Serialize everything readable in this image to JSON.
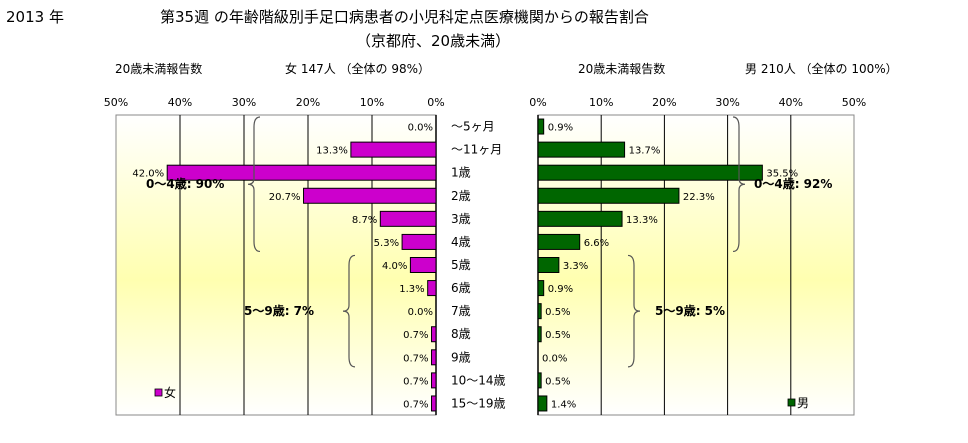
{
  "header": {
    "year": "2013 年",
    "title": "第35週 の年齢階級別手足口病患者の小児科定点医療機関からの報告割合",
    "subtitle": "（京都府、20歳未満）"
  },
  "left": {
    "caption": "20歳未満報告数",
    "total": "女  147人 （全体の  98%）",
    "legend": "女",
    "group_a": "0～4歳: 90%",
    "group_b": "5～9歳:  7%"
  },
  "right": {
    "caption": "20歳未満報告数",
    "total": "男  210人 （全体の  100%）",
    "legend": "男",
    "group_a": "0～4歳: 92%",
    "group_b": "5～9歳:  5%"
  },
  "chart_data": {
    "type": "bar",
    "orientation": "horizontal-butterfly",
    "categories": [
      "～5ヶ月",
      "～11ヶ月",
      "1歳",
      "2歳",
      "3歳",
      "4歳",
      "5歳",
      "6歳",
      "7歳",
      "8歳",
      "9歳",
      "10～14歳",
      "15～19歳"
    ],
    "series": [
      {
        "name": "女",
        "values": [
          0.0,
          13.3,
          42.0,
          20.7,
          8.7,
          5.3,
          4.0,
          1.3,
          0.0,
          0.7,
          0.7,
          0.7,
          0.7
        ],
        "color": "#cc00cc"
      },
      {
        "name": "男",
        "values": [
          0.9,
          13.7,
          35.5,
          22.3,
          13.3,
          6.6,
          3.3,
          0.9,
          0.5,
          0.5,
          0.0,
          0.5,
          1.4
        ],
        "color": "#006600"
      }
    ],
    "xlim": [
      0,
      50
    ],
    "ticks": [
      "0%",
      "10%",
      "20%",
      "30%",
      "40%",
      "50%"
    ],
    "value_suffix": "%",
    "grid": true
  }
}
